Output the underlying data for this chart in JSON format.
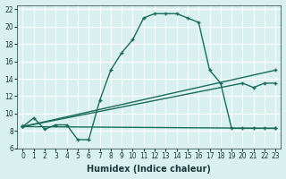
{
  "xlabel": "Humidex (Indice chaleur)",
  "ylabel": "",
  "bg_color": "#d8f0f0",
  "grid_color": "#ffffff",
  "line_color": "#1a6b5a",
  "xlim": [
    -0.5,
    23.5
  ],
  "ylim": [
    6,
    22.5
  ],
  "xticks": [
    0,
    1,
    2,
    3,
    4,
    5,
    6,
    7,
    8,
    9,
    10,
    11,
    12,
    13,
    14,
    15,
    16,
    17,
    18,
    19,
    20,
    21,
    22,
    23
  ],
  "yticks": [
    6,
    8,
    10,
    12,
    14,
    16,
    18,
    20,
    22
  ],
  "curve1_x": [
    0,
    1,
    2,
    3,
    4,
    5,
    6,
    7,
    8,
    9,
    10,
    11,
    12,
    13,
    14,
    15,
    16,
    17,
    18,
    19,
    20,
    21,
    22,
    23
  ],
  "curve1_y": [
    8.5,
    9.5,
    8.2,
    8.7,
    8.7,
    7.0,
    7.0,
    11.5,
    15.0,
    17.0,
    18.5,
    21.0,
    21.5,
    21.5,
    21.5,
    21.0,
    20.5,
    15.0,
    13.5,
    8.3,
    8.3,
    8.3,
    8.3,
    8.3
  ],
  "curve2_x": [
    0,
    23
  ],
  "curve2_y": [
    8.5,
    8.3
  ],
  "curve3_x": [
    0,
    23
  ],
  "curve3_y": [
    8.5,
    15.0
  ],
  "curve4_x": [
    0,
    20,
    21,
    22,
    23
  ],
  "curve4_y": [
    8.5,
    13.5,
    13.0,
    13.5,
    13.5
  ]
}
